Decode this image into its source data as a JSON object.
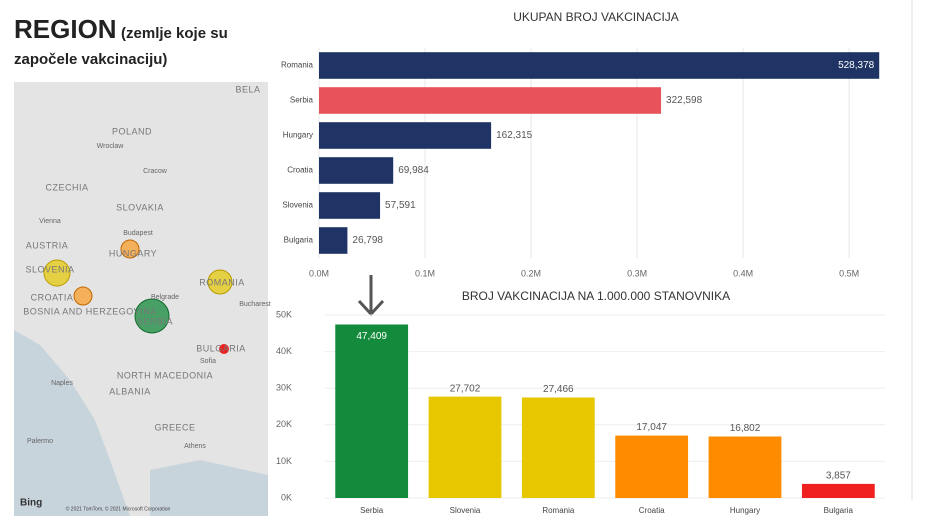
{
  "header": {
    "title": "REGION",
    "subtitle": "(zemlje koje su započele vakcinaciju)"
  },
  "map": {
    "labels": [
      "POLAND",
      "Wroclaw",
      "Cracow",
      "CZECHIA",
      "SLOVAKIA",
      "Vienna",
      "Budapest",
      "AUSTRIA",
      "HUNGARY",
      "SLOVENIA",
      "CROATIA",
      "ROMANIA",
      "Bucharest",
      "Belgrade",
      "BOSNIA AND HERZEGOVINA",
      "SERBIA",
      "BULGARIA",
      "Sofia",
      "NORTH MACEDONIA",
      "Naples",
      "ALBANIA",
      "GREECE",
      "Palermo",
      "Athens",
      "BELA"
    ],
    "logo": "Bing",
    "attribution": "© 2021 TomTom, © 2021 Microsoft Corporation"
  },
  "chart_data": [
    {
      "type": "bar",
      "orientation": "horizontal",
      "title": "UKUPAN BROJ VAKCINACIJA",
      "categories": [
        "Romania",
        "Serbia",
        "Hungary",
        "Croatia",
        "Slovenia",
        "Bulgaria"
      ],
      "values": [
        528378,
        322598,
        162315,
        69984,
        57591,
        26798
      ],
      "value_labels": [
        "528,378",
        "322,598",
        "162,315",
        "69,984",
        "57,591",
        "26,798"
      ],
      "colors": [
        "#1f3464",
        "#e8525a",
        "#1f3464",
        "#1f3464",
        "#1f3464",
        "#1f3464"
      ],
      "xlim": [
        0,
        531000
      ],
      "xticks": [
        {
          "value": 0,
          "label": "0.0M"
        },
        {
          "value": 100000,
          "label": "0.1M"
        },
        {
          "value": 200000,
          "label": "0.2M"
        },
        {
          "value": 300000,
          "label": "0.3M"
        },
        {
          "value": 400000,
          "label": "0.4M"
        },
        {
          "value": 500000,
          "label": "0.5M"
        }
      ]
    },
    {
      "type": "bar",
      "orientation": "vertical",
      "title": "BROJ VAKCINACIJA NA 1.000.000 STANOVNIKA",
      "categories": [
        "Serbia",
        "Slovenia",
        "Romania",
        "Croatia",
        "Hungary",
        "Bulgaria"
      ],
      "values": [
        47409,
        27702,
        27466,
        17047,
        16802,
        3857
      ],
      "value_labels": [
        "47,409",
        "27,702",
        "27,466",
        "17,047",
        "16,802",
        "3,857"
      ],
      "colors": [
        "#148a3c",
        "#e6c700",
        "#e6c700",
        "#ff8c00",
        "#ff8c00",
        "#f02020"
      ],
      "ylim": [
        0,
        50000
      ],
      "yticks": [
        {
          "value": 0,
          "label": "0K"
        },
        {
          "value": 10000,
          "label": "10K"
        },
        {
          "value": 20000,
          "label": "20K"
        },
        {
          "value": 30000,
          "label": "30K"
        },
        {
          "value": 40000,
          "label": "40K"
        },
        {
          "value": 50000,
          "label": "50K"
        }
      ]
    }
  ]
}
